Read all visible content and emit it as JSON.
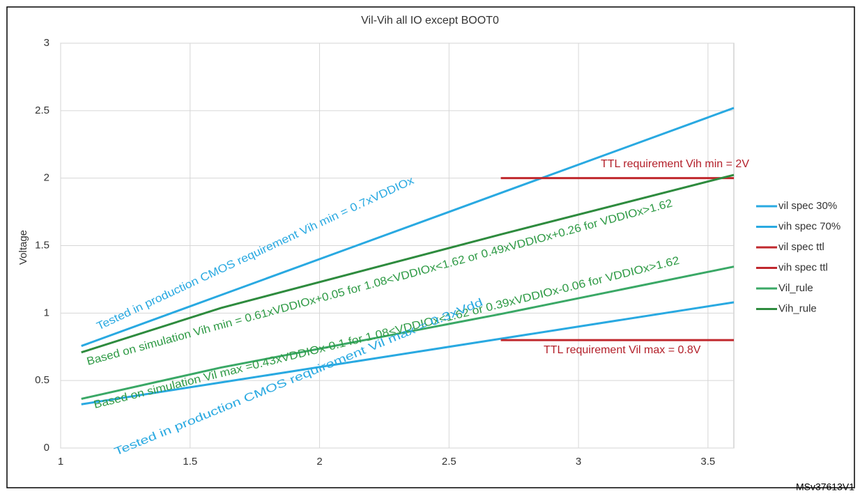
{
  "chart_data": {
    "type": "line",
    "title": "Vil-Vih all IO except BOOT0",
    "y_label": "Voltage",
    "x": [
      1.08,
      1.62,
      2.7,
      3.6
    ],
    "series": [
      {
        "name": "vil spec 30%",
        "color": "#29a9e1",
        "values": [
          0.324,
          0.486,
          0.81,
          1.08
        ]
      },
      {
        "name": "vih spec 70%",
        "color": "#29a9e1",
        "values": [
          0.756,
          1.134,
          1.89,
          2.52
        ]
      },
      {
        "name": "vil spec ttl",
        "color": "#c0282d",
        "values": [
          null,
          null,
          0.8,
          0.8
        ]
      },
      {
        "name": "vih spec ttl",
        "color": "#c0282d",
        "values": [
          null,
          null,
          2,
          2
        ]
      },
      {
        "name": "Vil_rule",
        "color": "#3aa866",
        "values": [
          0.3644,
          0.5966,
          0.993,
          1.344
        ]
      },
      {
        "name": "Vih_rule",
        "color": "#2e8b3e",
        "values": [
          0.7088,
          1.0382,
          1.583,
          2.024
        ]
      }
    ],
    "annotations": [
      "Tested in production CMOS requirement Vih min = 0.7xVDDIOx",
      "Based on simulation Vih min = 0.61xVDDIOx+0.05 for 1.08<VDDIOx<1.62 or 0.49xVDDIOx+0.26 for VDDIOx>1.62",
      "Based on simulation Vil max =0.43xVDDIOx-0.1 for 1.08<VDDIOx<1.62 or  0.39xVDDIOx-0.06 for VDDIOx>1.62",
      "Tested in production CMOS requirement Vil max = 0.3xVdd",
      "TTL requirement Vih min = 2V",
      "TTL requirement Vil max = 0.8V"
    ],
    "footer": "MSv37613V1",
    "xlim": [
      1,
      3.6
    ],
    "ylim": [
      0,
      3
    ],
    "xticks": [
      1,
      1.5,
      2,
      2.5,
      3,
      3.5
    ],
    "yticks": [
      0,
      0.5,
      1,
      1.5,
      2,
      2.5,
      3
    ],
    "grid": true,
    "legend": "right"
  }
}
